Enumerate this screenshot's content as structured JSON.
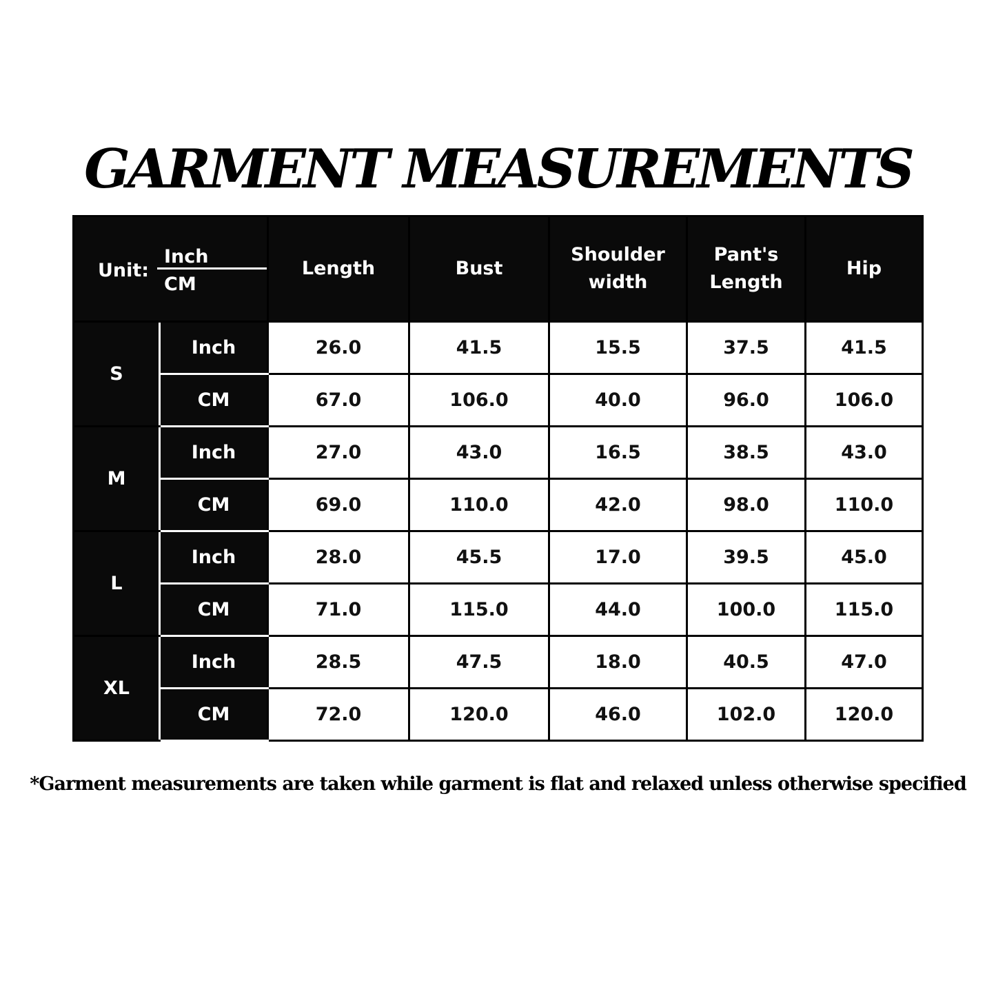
{
  "title": "GARMENT MEASUREMENTS",
  "table": {
    "unit_label": "Unit:",
    "unit_inch": "Inch",
    "unit_cm": "CM",
    "columns": [
      "Length",
      "Bust",
      "Shoulder width",
      "Pant's Length",
      "Hip"
    ],
    "sizes": [
      {
        "size": "S",
        "rows": [
          {
            "unit": "Inch",
            "values": [
              "26.0",
              "41.5",
              "15.5",
              "37.5",
              "41.5"
            ]
          },
          {
            "unit": "CM",
            "values": [
              "67.0",
              "106.0",
              "40.0",
              "96.0",
              "106.0"
            ]
          }
        ]
      },
      {
        "size": "M",
        "rows": [
          {
            "unit": "Inch",
            "values": [
              "27.0",
              "43.0",
              "16.5",
              "38.5",
              "43.0"
            ]
          },
          {
            "unit": "CM",
            "values": [
              "69.0",
              "110.0",
              "42.0",
              "98.0",
              "110.0"
            ]
          }
        ]
      },
      {
        "size": "L",
        "rows": [
          {
            "unit": "Inch",
            "values": [
              "28.0",
              "45.5",
              "17.0",
              "39.5",
              "45.0"
            ]
          },
          {
            "unit": "CM",
            "values": [
              "71.0",
              "115.0",
              "44.0",
              "100.0",
              "115.0"
            ]
          }
        ]
      },
      {
        "size": "XL",
        "rows": [
          {
            "unit": "Inch",
            "values": [
              "28.5",
              "47.5",
              "18.0",
              "40.5",
              "47.0"
            ]
          },
          {
            "unit": "CM",
            "values": [
              "72.0",
              "120.0",
              "46.0",
              "102.0",
              "120.0"
            ]
          }
        ]
      }
    ]
  },
  "footnote": "*Garment measurements are taken while garment is flat and relaxed unless otherwise specified"
}
